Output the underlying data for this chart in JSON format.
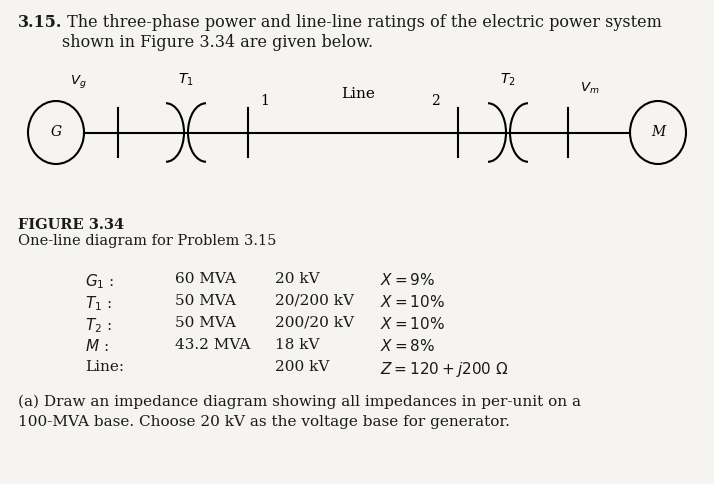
{
  "title_bold": "3.15.",
  "title_rest": " The three-phase power and line-line ratings of the electric power system",
  "title_line2": "shown in Figure 3.34 are given below.",
  "figure_label_bold": "FIGURE 3.34",
  "figure_label_text": "One-line diagram for Problem 3.15",
  "table_rows": [
    [
      "$G_1$ :",
      "60 MVA",
      "20 kV",
      "$X = 9\\%$"
    ],
    [
      "$T_1$ :",
      "50 MVA",
      "20/200 kV",
      "$X = 10\\%$"
    ],
    [
      "$T_2$ :",
      "50 MVA",
      "200/20 kV",
      "$X = 10\\%$"
    ],
    [
      "$M$ :",
      "43.2 MVA",
      "18 kV",
      "$X = 8\\%$"
    ],
    [
      "Line:",
      "",
      "200 kV",
      "$Z = 120 + j200\\ \\Omega$"
    ]
  ],
  "footer_line1": "(a) Draw an impedance diagram showing all impedances in per-unit on a",
  "footer_line2": "100-MVA base. Choose 20 kV as the voltage base for generator.",
  "bg_color": "#f5f4f0",
  "text_color": "#1a1a1a"
}
